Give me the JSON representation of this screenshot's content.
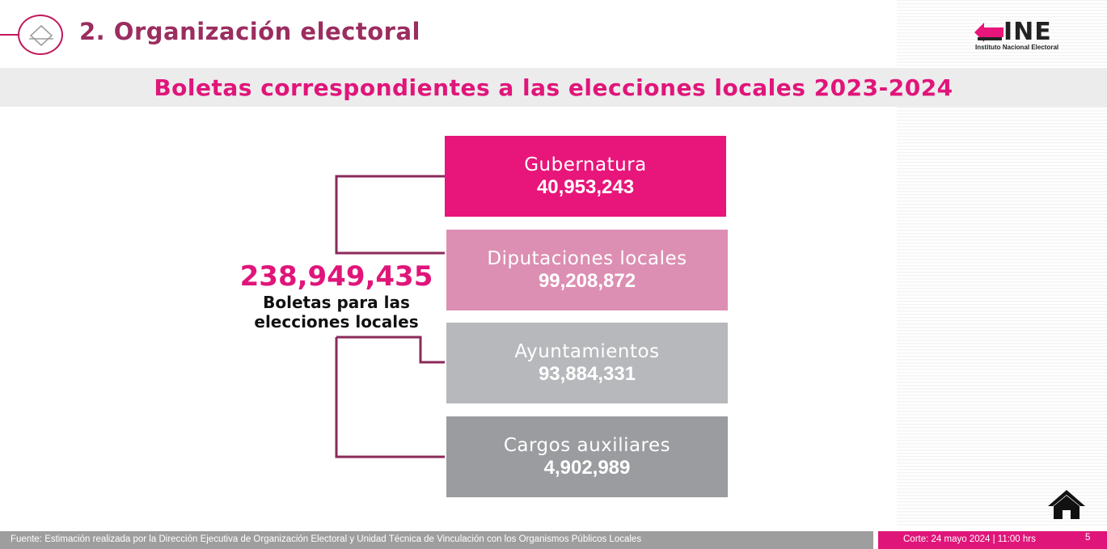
{
  "header": {
    "title": "2. Organización electoral",
    "section_icon": "ballot-diamond-icon"
  },
  "logo": {
    "wordmark": "INE",
    "caption": "Instituto Nacional Electoral",
    "icon": "ine-arrow-logo-icon"
  },
  "subtitle": "Boletas correspondientes a las elecciones locales 2023-2024",
  "total": {
    "value": "238,949,435",
    "caption": "Boletas para las\nelecciones locales"
  },
  "items": [
    {
      "label": "Gubernatura",
      "value": "40,953,243",
      "color": "#e8157a"
    },
    {
      "label": "Diputaciones locales",
      "value": "99,208,872",
      "color": "#dc8fb3"
    },
    {
      "label": "Ayuntamientos",
      "value": "93,884,331",
      "color": "#b6b8bb"
    },
    {
      "label": "Cargos auxiliares",
      "value": "4,902,989",
      "color": "#9a9c9f"
    }
  ],
  "colors": {
    "accent": "#e0157a",
    "title": "#9b2d5f",
    "connector": "#8b2a5a"
  },
  "footer": {
    "source": "Fuente: Estimación realizada por la Dirección Ejecutiva de Organización Electoral y Unidad Técnica de Vinculación con los Organismos Públicos Locales",
    "date": "Corte: 24  mayo 2024  |  11:00 hrs",
    "page_number": "5"
  },
  "home_icon": "home-icon"
}
